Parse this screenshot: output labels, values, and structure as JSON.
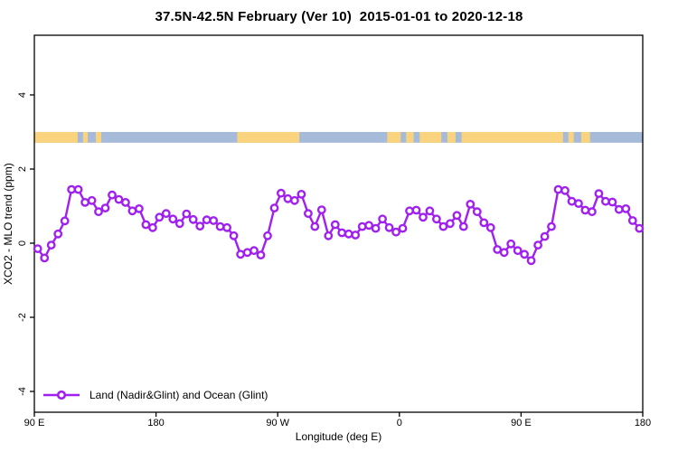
{
  "title": "37.5N-42.5N February (Ver 10)  2015-01-01 to 2020-12-18",
  "legend": {
    "label": "Land (Nadir&Glint) and Ocean (Glint)"
  },
  "colors": {
    "series": "#A020F0",
    "marker_fill": "#ffffff",
    "land": "#FAD37E",
    "ocean": "#A6BBDA",
    "axis": "#000000"
  },
  "axes": {
    "x": {
      "label": "Longitude (deg E)"
    },
    "y": {
      "label": "XCO2 - MLO trend (ppm)"
    }
  },
  "chart_data": {
    "type": "line",
    "title": "37.5N-42.5N February (Ver 10)  2015-01-01 to 2020-12-18",
    "xlabel": "Longitude (deg E)",
    "ylabel": "XCO2 - MLO trend (ppm)",
    "grid": false,
    "legend_position": "bottom-left",
    "x_axis_unwrapped_deg": [
      90,
      540
    ],
    "ylim": [
      -4.56,
      5.61
    ],
    "x_ticks": [
      {
        "pos": 90,
        "label": "90 E"
      },
      {
        "pos": 180,
        "label": "180"
      },
      {
        "pos": 270,
        "label": "90 W"
      },
      {
        "pos": 360,
        "label": "0"
      },
      {
        "pos": 450,
        "label": "90 E"
      },
      {
        "pos": 540,
        "label": "180"
      }
    ],
    "y_ticks": [
      -4,
      -2,
      0,
      2,
      4
    ],
    "series": [
      {
        "name": "Land (Nadir&Glint) and Ocean (Glint)",
        "marker": "open-circle",
        "color": "#A020F0",
        "x_deg": [
          92.5,
          97.5,
          102.5,
          107.5,
          112.5,
          117.5,
          122.5,
          127.5,
          132.5,
          137.5,
          142.5,
          147.5,
          152.5,
          157.5,
          162.5,
          167.5,
          172.5,
          177.5,
          182.5,
          187.5,
          192.5,
          197.5,
          202.5,
          207.5,
          212.5,
          217.5,
          222.5,
          227.5,
          232.5,
          237.5,
          242.5,
          247.5,
          252.5,
          257.5,
          262.5,
          267.5,
          272.5,
          277.5,
          282.5,
          287.5,
          292.5,
          297.5,
          302.5,
          307.5,
          312.5,
          317.5,
          322.5,
          327.5,
          332.5,
          337.5,
          342.5,
          347.5,
          352.5,
          357.5,
          362.5,
          367.5,
          372.5,
          377.5,
          382.5,
          387.5,
          392.5,
          397.5,
          402.5,
          407.5,
          412.5,
          417.5,
          422.5,
          427.5,
          432.5,
          437.5,
          442.5,
          447.5,
          452.5,
          457.5,
          462.5,
          467.5,
          472.5,
          477.5,
          482.5,
          487.5,
          492.5,
          497.5,
          502.5,
          507.5,
          512.5,
          517.5,
          522.5,
          527.5,
          532.5,
          537.5
        ],
        "values": [
          -0.15,
          -0.4,
          -0.05,
          0.25,
          0.6,
          1.45,
          1.45,
          1.1,
          1.15,
          0.85,
          0.95,
          1.3,
          1.18,
          1.1,
          0.87,
          0.93,
          0.5,
          0.42,
          0.7,
          0.8,
          0.65,
          0.53,
          0.79,
          0.64,
          0.46,
          0.63,
          0.61,
          0.45,
          0.42,
          0.2,
          -0.3,
          -0.25,
          -0.2,
          -0.32,
          0.2,
          0.95,
          1.35,
          1.2,
          1.15,
          1.32,
          0.8,
          0.45,
          0.9,
          0.2,
          0.5,
          0.28,
          0.25,
          0.22,
          0.45,
          0.48,
          0.4,
          0.65,
          0.42,
          0.3,
          0.4,
          0.87,
          0.89,
          0.7,
          0.87,
          0.65,
          0.45,
          0.53,
          0.75,
          0.45,
          1.05,
          0.85,
          0.55,
          0.42,
          -0.17,
          -0.25,
          -0.02,
          -0.2,
          -0.3,
          -0.47,
          -0.05,
          0.18,
          0.45,
          1.45,
          1.42,
          1.13,
          1.07,
          0.89,
          0.85,
          1.34,
          1.13,
          1.11,
          0.91,
          0.93,
          0.61,
          0.4
        ]
      }
    ],
    "map_strip": {
      "description": "land/ocean world-map band drawn across the plot",
      "value_range_ppm": [
        2.71,
        3.0
      ],
      "ocean_color": "#A6BBDA",
      "land_color": "#FAD37E",
      "land_segments_deg": [
        [
          90,
          122
        ],
        [
          126,
          129.5
        ],
        [
          135.5,
          139.5
        ],
        [
          240,
          286
        ],
        [
          351,
          361
        ],
        [
          365,
          370.5
        ],
        [
          375,
          391
        ],
        [
          395.5,
          401.5
        ],
        [
          406,
          481
        ],
        [
          485,
          489
        ],
        [
          494.5,
          501
        ]
      ]
    }
  }
}
